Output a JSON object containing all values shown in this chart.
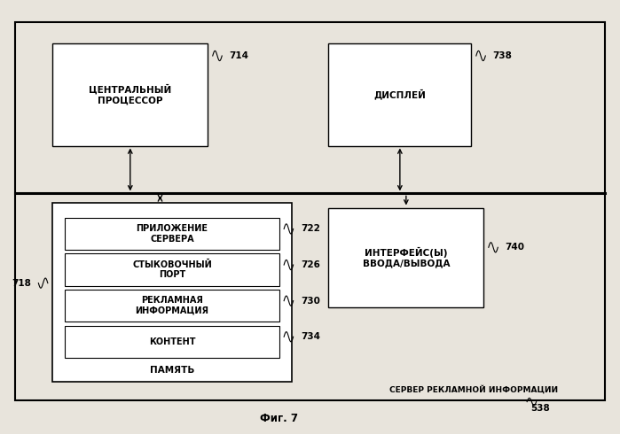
{
  "bg_color": "#e8e4dc",
  "box_fc": "#ffffff",
  "text_color": "#000000",
  "title": "Фиг. 7",
  "label_538": "538",
  "label_outer": "СЕРВЕР РЕКЛАМНОЙ ИНФОРМАЦИИ",
  "cpu_label": "ЦЕНТРАЛЬНЫЙ\nПРОЦЕССОР",
  "cpu_num": "714",
  "display_label": "ДИСПЛЕЙ",
  "display_num": "738",
  "memory_outer_label": "ПАМЯТЬ",
  "memory_outer_num": "718",
  "app_label": "ПРИЛОЖЕНИЕ\nСЕРВЕРА",
  "app_num": "722",
  "dock_label": "СТЫКОВОЧНЫЙ\nПОРТ",
  "dock_num": "726",
  "adv_label": "РЕКЛАМНАЯ\nИНФОРМАЦИЯ",
  "adv_num": "730",
  "content_label": "КОНТЕНТ",
  "content_num": "734",
  "io_label": "ИНТЕРФЕЙС(Ы)\nВВОДА/ВЫВОДА",
  "io_num": "740"
}
